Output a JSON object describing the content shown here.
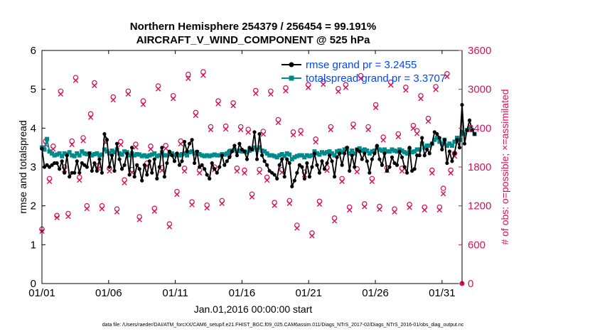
{
  "chart_data": {
    "type": "line",
    "title": "Northern Hemisphere 254379 / 256454 = 99.191%",
    "subtitle": "AIRCRAFT_V_WIND_COMPONENT @ 525 hPa",
    "xlabel": "Jan.01,2016 00:00:00 start",
    "ylabel": "rmse and totalspread",
    "ylabel_right": "# of obs: o=possible; ×=assimilated",
    "footnote": "data file: /Users/raeder/DAI/ATM_forcXX/CAM6_setup/f.e21.FHIST_BGC.f09_025.CAM6assim.011/Diags_NTrS_2017-02/Diags_NTrS_2016-01/obs_diag_output.nc",
    "xlim": [
      0,
      31.5
    ],
    "ylim": [
      0,
      6
    ],
    "ylim_right": [
      0,
      3600
    ],
    "x_tick_labels": [
      "01/01",
      "01/06",
      "01/11",
      "01/16",
      "01/21",
      "01/26",
      "01/31"
    ],
    "x_ticks": [
      0,
      5,
      10,
      15,
      20,
      25,
      30
    ],
    "y_ticks": [
      0,
      1,
      2,
      3,
      4,
      5,
      6
    ],
    "y_ticks_right": [
      0,
      600,
      1200,
      1800,
      2400,
      3000,
      3600
    ],
    "grid": false,
    "legend_position": "top-right",
    "colors": {
      "rmse": "#000000",
      "spread": "#008b8b",
      "obs": "#d8125a",
      "right_axis": "#d8125a",
      "legend_text": "#0047ff"
    },
    "series": [
      {
        "name": "rmse grand pr = 3.2455",
        "values": [
          3.47,
          3.0,
          3.05,
          3.0,
          3.05,
          3.1,
          3.1,
          2.95,
          3.15,
          2.85,
          3.3,
          2.75,
          2.85,
          2.85,
          3.15,
          2.85,
          3.1,
          3.05,
          3.0,
          3.35,
          2.9,
          3.1,
          2.9,
          3.2,
          2.85,
          3.85,
          3.7,
          3.0,
          3.3,
          2.9,
          3.6,
          3.2,
          2.95,
          3.05,
          3.35,
          2.8,
          3.5,
          2.75,
          3.05,
          2.95,
          2.65,
          3.05,
          2.8,
          3.15,
          2.85,
          3.2,
          2.7,
          3.0,
          3.5,
          2.75,
          3.1,
          3.4,
          3.3,
          3.15,
          3.35,
          3.05,
          3.15,
          3.65,
          3.4,
          3.6,
          3.7,
          3.1,
          3.4,
          3.0,
          3.05,
          2.95,
          2.8,
          2.7,
          3.1,
          2.95,
          2.85,
          3.0,
          3.3,
          3.05,
          3.15,
          3.25,
          3.4,
          3.55,
          3.3,
          3.6,
          3.45,
          3.4,
          3.2,
          3.5,
          3.45,
          3.9,
          3.2,
          3.85,
          3.3,
          3.15,
          3.05,
          2.9,
          2.85,
          2.8,
          2.7,
          3.05,
          3.2,
          2.75,
          3.2,
          3.1,
          2.5,
          2.65,
          2.85,
          3.05,
          3.0,
          2.7,
          3.1,
          2.75,
          3.0,
          3.35,
          3.05,
          2.85,
          3.15,
          2.95,
          3.1,
          3.3,
          3.15,
          2.75,
          3.25,
          3.35,
          3.05,
          3.35,
          3.5,
          2.9,
          3.3,
          3.0,
          3.45,
          3.4,
          3.2,
          3.35,
          3.15,
          2.85,
          3.2,
          3.35,
          3.55,
          3.2,
          3.05,
          3.35,
          2.9,
          3.0,
          3.25,
          3.1,
          3.05,
          3.4,
          3.25,
          3.0,
          2.85,
          3.5,
          2.9,
          2.95,
          3.3,
          3.3,
          3.75,
          3.3,
          3.45,
          3.35,
          3.6,
          3.9,
          3.85,
          3.75,
          3.45,
          3.7,
          3.1,
          3.4,
          3.15,
          3.35,
          3.7,
          3.5,
          4.6,
          3.6,
          3.95,
          4.2,
          3.95,
          3.85
        ],
        "x_start": 0,
        "x_step": 0.1875
      },
      {
        "name": "totalspread grand pr = 3.3707",
        "values": [
          3.5,
          3.45,
          3.72,
          3.4,
          3.35,
          3.3,
          3.32,
          3.35,
          3.28,
          3.35,
          3.33,
          3.38,
          3.3,
          3.28,
          3.35,
          3.3,
          3.4,
          3.35,
          3.33,
          3.35,
          3.3,
          3.33,
          3.35,
          3.3,
          3.32,
          3.45,
          3.4,
          3.35,
          3.42,
          3.38,
          3.45,
          3.35,
          3.32,
          3.4,
          3.38,
          3.3,
          3.35,
          3.3,
          3.33,
          3.32,
          3.28,
          3.3,
          3.27,
          3.3,
          3.32,
          3.35,
          3.28,
          3.3,
          3.38,
          3.3,
          3.3,
          3.33,
          3.35,
          3.3,
          3.32,
          3.3,
          3.33,
          3.35,
          3.3,
          3.38,
          3.4,
          3.35,
          3.38,
          3.33,
          3.3,
          3.28,
          3.3,
          3.28,
          3.3,
          3.32,
          3.3,
          3.3,
          3.33,
          3.32,
          3.35,
          3.4,
          3.42,
          3.45,
          3.4,
          3.42,
          3.4,
          3.4,
          3.38,
          3.42,
          3.45,
          3.5,
          3.45,
          3.5,
          3.42,
          3.4,
          3.35,
          3.3,
          3.3,
          3.28,
          3.25,
          3.3,
          3.33,
          3.28,
          3.35,
          3.32,
          3.2,
          3.25,
          3.28,
          3.3,
          3.3,
          3.25,
          3.3,
          3.28,
          3.3,
          3.4,
          3.35,
          3.32,
          3.38,
          3.35,
          3.38,
          3.4,
          3.35,
          3.3,
          3.4,
          3.42,
          3.38,
          3.45,
          3.48,
          3.35,
          3.42,
          3.35,
          3.45,
          3.48,
          3.42,
          3.45,
          3.42,
          3.35,
          3.4,
          3.42,
          3.5,
          3.45,
          3.42,
          3.45,
          3.4,
          3.4,
          3.45,
          3.42,
          3.4,
          3.45,
          3.42,
          3.38,
          3.35,
          3.45,
          3.38,
          3.4,
          3.45,
          3.45,
          3.6,
          3.5,
          3.55,
          3.55,
          3.6,
          3.7,
          3.75,
          3.65,
          3.6,
          3.7,
          3.55,
          3.6,
          3.55,
          3.65,
          3.75,
          3.7,
          3.9,
          3.85,
          3.95,
          4.0,
          3.95,
          3.85
        ],
        "x_start": 0,
        "x_step": 0.1875
      },
      {
        "name": "obs possible",
        "axis": "right",
        "values": [
          840,
          2200,
          1620,
          2120,
          1050,
          2970,
          1800,
          1080,
          2200,
          3180,
          1640,
          2250,
          1200,
          2620,
          3100,
          1820,
          1200,
          2220,
          1780,
          2880,
          1150,
          2190,
          1600,
          2970,
          1760,
          2150,
          1030,
          2820,
          1860,
          2120,
          1160,
          3050,
          1790,
          2130,
          920,
          2900,
          1420,
          2200,
          1780,
          3230,
          1260,
          2640,
          1750,
          3270,
          1210,
          2420,
          1800,
          2820,
          1280,
          2430,
          2040,
          2790,
          1780,
          2420,
          1750,
          2380,
          1380,
          2980,
          1760,
          2350,
          1640,
          2970,
          1250,
          2530,
          1760,
          3020,
          1280,
          2340,
          900,
          2360,
          1720,
          3070,
          780,
          2230,
          1270,
          3120,
          1790,
          2420,
          1010,
          3010,
          1620,
          3070,
          1180,
          2460,
          1770,
          3210,
          1230,
          2420,
          1620,
          2760,
          1190,
          2260,
          1790,
          3110,
          1150,
          2310,
          1780,
          3030,
          1220,
          2440,
          2360,
          2900,
          1180,
          2550,
          1750,
          3040,
          1180,
          1470,
          3240,
          1750,
          2010
        ],
        "x_start": 0,
        "x_step": 0.28125
      },
      {
        "name": "obs assimilated",
        "axis": "right",
        "values": [
          840,
          2180,
          1610,
          2110,
          1050,
          2960,
          1790,
          1070,
          2180,
          3170,
          1630,
          2240,
          1190,
          2600,
          3090,
          1810,
          1190,
          2210,
          1770,
          2870,
          1140,
          2180,
          1590,
          2960,
          1750,
          2140,
          1020,
          2800,
          1850,
          2110,
          1150,
          3040,
          1780,
          2120,
          910,
          2890,
          1410,
          2190,
          1770,
          3200,
          1250,
          2630,
          1740,
          3250,
          1200,
          2410,
          1790,
          2810,
          1270,
          2420,
          2030,
          2780,
          1770,
          2410,
          1740,
          2370,
          1370,
          2970,
          1750,
          2340,
          1630,
          2960,
          1240,
          2520,
          1750,
          3010,
          1270,
          2330,
          890,
          2350,
          1710,
          3060,
          770,
          2220,
          1260,
          3110,
          1780,
          2410,
          1000,
          3000,
          1610,
          3060,
          1170,
          2450,
          1760,
          3200,
          1220,
          2410,
          1610,
          2750,
          1180,
          2250,
          1780,
          3100,
          1140,
          2300,
          1770,
          3020,
          1210,
          2430,
          2350,
          2890,
          1170,
          2540,
          1740,
          3030,
          1170,
          1420,
          3230,
          1740,
          2000
        ],
        "x_start": 0,
        "x_step": 0.28125
      }
    ],
    "zero_obs_x": 31.5
  }
}
